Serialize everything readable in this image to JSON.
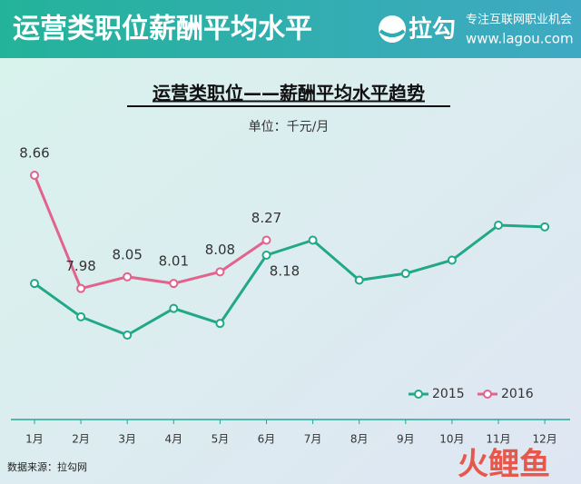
{
  "header": {
    "title": "运营类职位薪酬平均水平",
    "logo": "拉勾",
    "slogan": "专注互联网职业机会",
    "site": "www.lagou.com"
  },
  "chart_data": {
    "type": "line",
    "title": "运营类职位——薪酬平均水平趋势",
    "subtitle": "单位：千元/月",
    "categories": [
      "1月",
      "2月",
      "3月",
      "4月",
      "5月",
      "6月",
      "7月",
      "8月",
      "9月",
      "10月",
      "11月",
      "12月"
    ],
    "series": [
      {
        "name": "2015",
        "color": "#21a889",
        "values": [
          8.01,
          7.81,
          7.7,
          7.86,
          7.77,
          8.18,
          8.27,
          8.03,
          8.07,
          8.15,
          8.36,
          8.35
        ],
        "value_labels": [
          null,
          null,
          null,
          null,
          null,
          "8.18",
          null,
          null,
          null,
          null,
          null,
          null
        ]
      },
      {
        "name": "2016",
        "color": "#e2638c",
        "values": [
          8.66,
          7.98,
          8.05,
          8.01,
          8.08,
          8.27,
          null,
          null,
          null,
          null,
          null,
          null
        ]
      }
    ],
    "legend": "bottom-right"
  },
  "footer": {
    "source": "数据来源：拉勾网",
    "watermark": "火鲤鱼"
  }
}
